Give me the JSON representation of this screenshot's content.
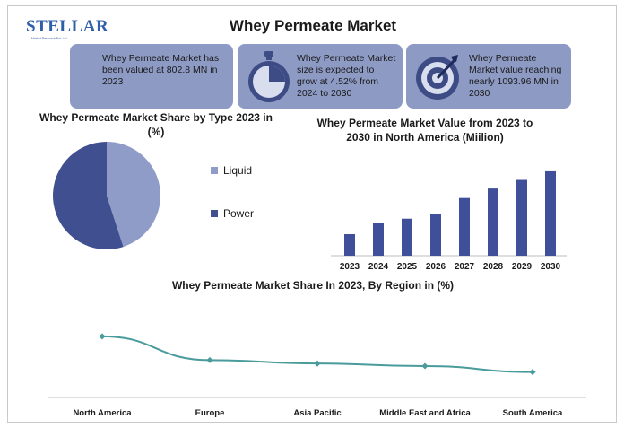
{
  "logo": {
    "text": "STELLAR",
    "tagline": "Market Research Pvt. Ltd."
  },
  "title": "Whey Permeate Market",
  "cards": [
    {
      "text": "Whey Permeate Market has been valued at 802.8 MN in 2023",
      "icon": "none"
    },
    {
      "text": "Whey Permeate Market size is expected to grow at 4.52% from 2024 to 2030",
      "icon": "stopwatch-icon"
    },
    {
      "text": "Whey Permeate Market value reaching nearly 1093.96 MN in 2030",
      "icon": "target-icon"
    }
  ],
  "colors": {
    "card_bg": "#8d9ac4",
    "liquid": "#8f9cc8",
    "powder": "#3f4f8f",
    "bar": "#3f4f9a",
    "line": "#4a9b9b",
    "icon_dark": "#3e4c86"
  },
  "chart_data": [
    {
      "type": "pie",
      "title": "Whey Permeate Market Share by Type 2023 in (%)",
      "categories": [
        "Liquid",
        "Power"
      ],
      "values": [
        45,
        55
      ],
      "legend": "right"
    },
    {
      "type": "bar",
      "title": "Whey Permeate Market Value from 2023 to 2030 in North America (Miilion)",
      "categories": [
        "2023",
        "2024",
        "2025",
        "2026",
        "2027",
        "2028",
        "2029",
        "2030"
      ],
      "values": [
        25,
        38,
        43,
        48,
        67,
        78,
        88,
        98
      ],
      "ylim": [
        0,
        100
      ],
      "grid": false
    },
    {
      "type": "line",
      "title": "Whey Permeate Market Share In 2023, By Region in (%)",
      "categories": [
        "North America",
        "Europe",
        "Asia Pacific",
        "Middle East and Africa",
        "South America"
      ],
      "values": [
        36,
        22,
        20,
        18.5,
        15
      ],
      "ylim": [
        0,
        55
      ],
      "grid": false
    }
  ]
}
